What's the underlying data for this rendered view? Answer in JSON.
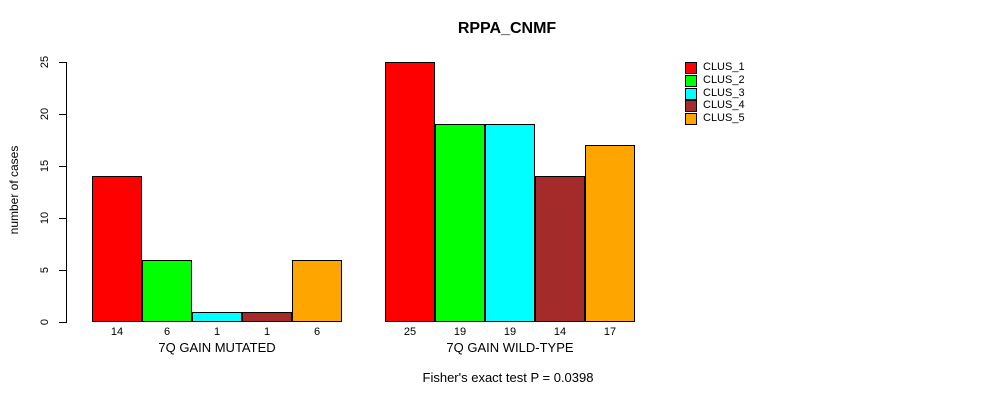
{
  "title": "RPPA_CNMF",
  "caption": "Fisher's exact test P = 0.0398",
  "chart_data": {
    "type": "bar",
    "title": "RPPA_CNMF",
    "ylabel": "number of cases",
    "ylim": [
      0,
      25
    ],
    "yticks": [
      0,
      5,
      10,
      15,
      20,
      25
    ],
    "grid": false,
    "legend_position": "right-outside",
    "categories": [
      "7Q GAIN MUTATED",
      "7Q GAIN WILD-TYPE"
    ],
    "groups": [
      {
        "label": "7Q GAIN MUTATED",
        "values": [
          14,
          6,
          1,
          1,
          6
        ]
      },
      {
        "label": "7Q GAIN WILD-TYPE",
        "values": [
          25,
          19,
          19,
          14,
          17
        ]
      }
    ],
    "series": [
      {
        "name": "CLUS_1",
        "color": "#FF0000"
      },
      {
        "name": "CLUS_2",
        "color": "#00FF00"
      },
      {
        "name": "CLUS_3",
        "color": "#00FFFF"
      },
      {
        "name": "CLUS_4",
        "color": "#A52A2A"
      },
      {
        "name": "CLUS_5",
        "color": "#FFA500"
      }
    ],
    "bar_value_labels_mutated": [
      "14",
      "6",
      "1",
      "1",
      "6"
    ],
    "bar_value_labels_wildtype": [
      "25",
      "19",
      "19",
      "14",
      "17"
    ],
    "annotation": "Fisher's exact test P = 0.0398"
  }
}
